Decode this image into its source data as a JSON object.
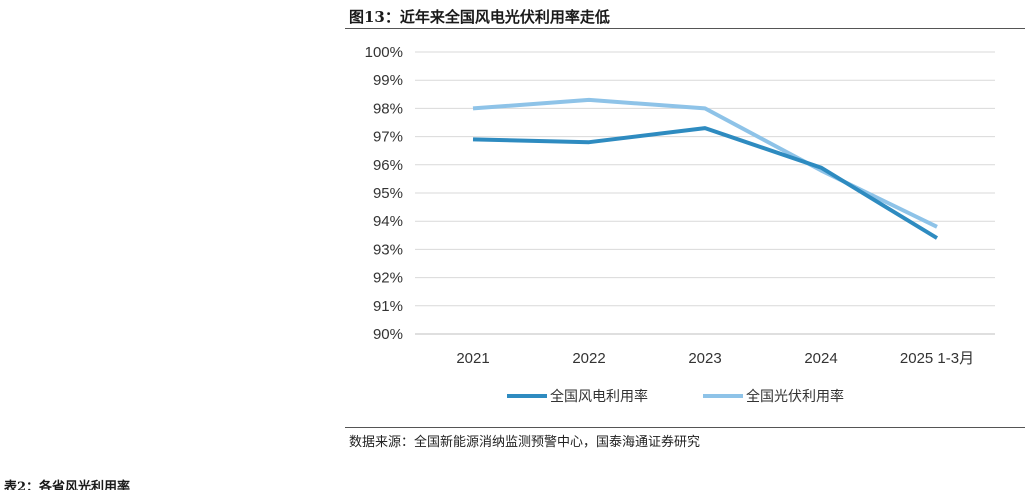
{
  "figure": {
    "title": "图13：近年来全国风电光伏利用率走低",
    "source": "数据来源：全国新能源消纳监测预警中心，国泰海通证券研究",
    "next_section_title": "表2：各省风光利用率"
  },
  "chart_data": {
    "type": "line",
    "title": "图13：近年来全国风电光伏利用率走低",
    "categories": [
      "2021",
      "2022",
      "2023",
      "2024",
      "2025 1-3月"
    ],
    "series": [
      {
        "name": "全国风电利用率",
        "values": [
          96.9,
          96.8,
          97.3,
          95.9,
          93.4
        ],
        "color": "#2E8BC0"
      },
      {
        "name": "全国光伏利用率",
        "values": [
          98.0,
          98.3,
          98.0,
          95.8,
          93.8
        ],
        "color": "#8EC3E8"
      }
    ],
    "y_ticks": [
      "90%",
      "91%",
      "92%",
      "93%",
      "94%",
      "95%",
      "96%",
      "97%",
      "98%",
      "99%",
      "100%"
    ],
    "ylim": [
      90,
      100
    ],
    "y_unit": "%",
    "grid": true,
    "legend_position": "bottom"
  }
}
